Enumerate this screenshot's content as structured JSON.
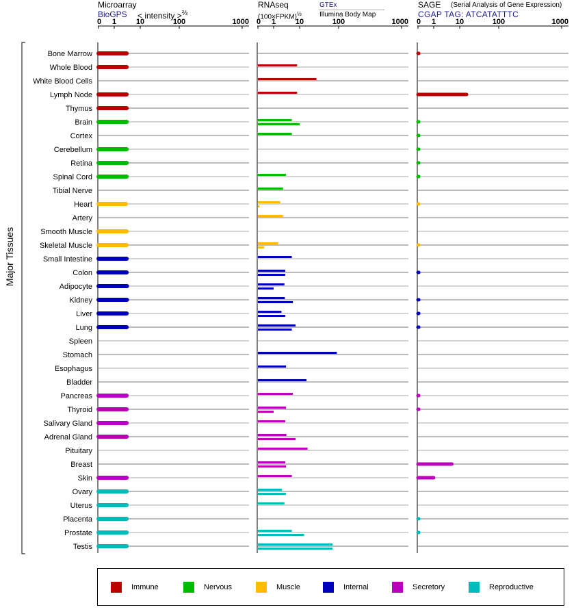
{
  "headers": {
    "microarray": {
      "title": "Microarray",
      "source": "BioGPS",
      "unit_prefix": "< intensity >",
      "unit_exp": "⅔"
    },
    "rnaseq": {
      "title": "RNAseq",
      "unit": "(100×FPKM)",
      "unit_exp": "½",
      "source1": "GTEx",
      "source2": "Illumina Body Map"
    },
    "sage": {
      "title": "SAGE",
      "subtitle": "(Serial Analysis of Gene Expression)",
      "tag": "CGAP TAG: ATCATATTTC"
    }
  },
  "y_axis_label": "Major Tissues",
  "legend": [
    {
      "label": "Immune",
      "color": "#bb0000"
    },
    {
      "label": "Nervous",
      "color": "#00bb00"
    },
    {
      "label": "Muscle",
      "color": "#ffbb00"
    },
    {
      "label": "Internal",
      "color": "#0000bb"
    },
    {
      "label": "Secretory",
      "color": "#bb00bb"
    },
    {
      "label": "Reproductive",
      "color": "#00bbbb"
    }
  ],
  "chart_data": {
    "type": "bar",
    "orientation": "horizontal",
    "x_scale": "log-like (0, 1, 10, 100, 1000)",
    "x_ticks": [
      "0",
      "1",
      "10",
      "100",
      "1000"
    ],
    "xlim": [
      0,
      1000
    ],
    "categories": [
      "Bone Marrow",
      "Whole Blood",
      "White Blood Cells",
      "Lymph Node",
      "Thymus",
      "Brain",
      "Cortex",
      "Cerebellum",
      "Retina",
      "Spinal Cord",
      "Tibial Nerve",
      "Heart",
      "Artery",
      "Smooth Muscle",
      "Skeletal Muscle",
      "Small Intestine",
      "Colon",
      "Adipocyte",
      "Kidney",
      "Liver",
      "Lung",
      "Spleen",
      "Stomach",
      "Esophagus",
      "Bladder",
      "Pancreas",
      "Thyroid",
      "Salivary Gland",
      "Adrenal Gland",
      "Pituitary",
      "Breast",
      "Skin",
      "Ovary",
      "Uterus",
      "Placenta",
      "Prostate",
      "Testis"
    ],
    "category_system": [
      "Immune",
      "Immune",
      "Immune",
      "Immune",
      "Immune",
      "Nervous",
      "Nervous",
      "Nervous",
      "Nervous",
      "Nervous",
      "Nervous",
      "Muscle",
      "Muscle",
      "Muscle",
      "Muscle",
      "Internal",
      "Internal",
      "Internal",
      "Internal",
      "Internal",
      "Internal",
      "Internal",
      "Internal",
      "Internal",
      "Internal",
      "Secretory",
      "Secretory",
      "Secretory",
      "Secretory",
      "Secretory",
      "Secretory",
      "Secretory",
      "Reproductive",
      "Reproductive",
      "Reproductive",
      "Reproductive",
      "Reproductive"
    ],
    "series": [
      {
        "name": "BioGPS",
        "values": [
          3,
          3,
          null,
          3,
          3,
          3,
          null,
          3,
          3,
          3,
          null,
          2.8,
          null,
          3,
          3,
          3,
          3,
          3.1,
          3.1,
          3,
          3,
          null,
          null,
          null,
          null,
          3,
          3,
          3,
          3,
          null,
          null,
          3,
          3,
          3,
          3,
          3,
          3
        ]
      },
      {
        "name": "GTEx",
        "values": [
          null,
          8,
          27,
          8,
          null,
          5,
          5,
          null,
          null,
          3,
          2.3,
          1.8,
          2.3,
          null,
          1.5,
          5,
          2.8,
          2.6,
          2.7,
          2,
          7,
          null,
          90,
          3,
          15,
          5.5,
          3,
          2.8,
          3.1,
          16,
          2.8,
          5,
          2.1,
          2.6,
          null,
          5,
          70
        ]
      },
      {
        "name": "Illumina Body Map",
        "values": [
          null,
          null,
          null,
          null,
          null,
          10,
          null,
          null,
          null,
          null,
          null,
          0.1,
          null,
          null,
          0.4,
          null,
          2.8,
          1,
          5.5,
          2.8,
          5,
          null,
          null,
          null,
          null,
          null,
          1,
          null,
          7,
          null,
          3,
          null,
          3,
          null,
          null,
          13,
          70
        ]
      },
      {
        "name": "SAGE",
        "values": [
          0.05,
          null,
          null,
          15,
          null,
          0.05,
          0.05,
          0.05,
          0.05,
          0.05,
          null,
          0.03,
          null,
          null,
          0.03,
          null,
          0.05,
          null,
          0.05,
          0.05,
          0.05,
          null,
          null,
          null,
          null,
          0.05,
          0.05,
          null,
          null,
          null,
          5,
          1,
          null,
          null,
          0.05,
          0.05,
          null
        ]
      }
    ]
  }
}
